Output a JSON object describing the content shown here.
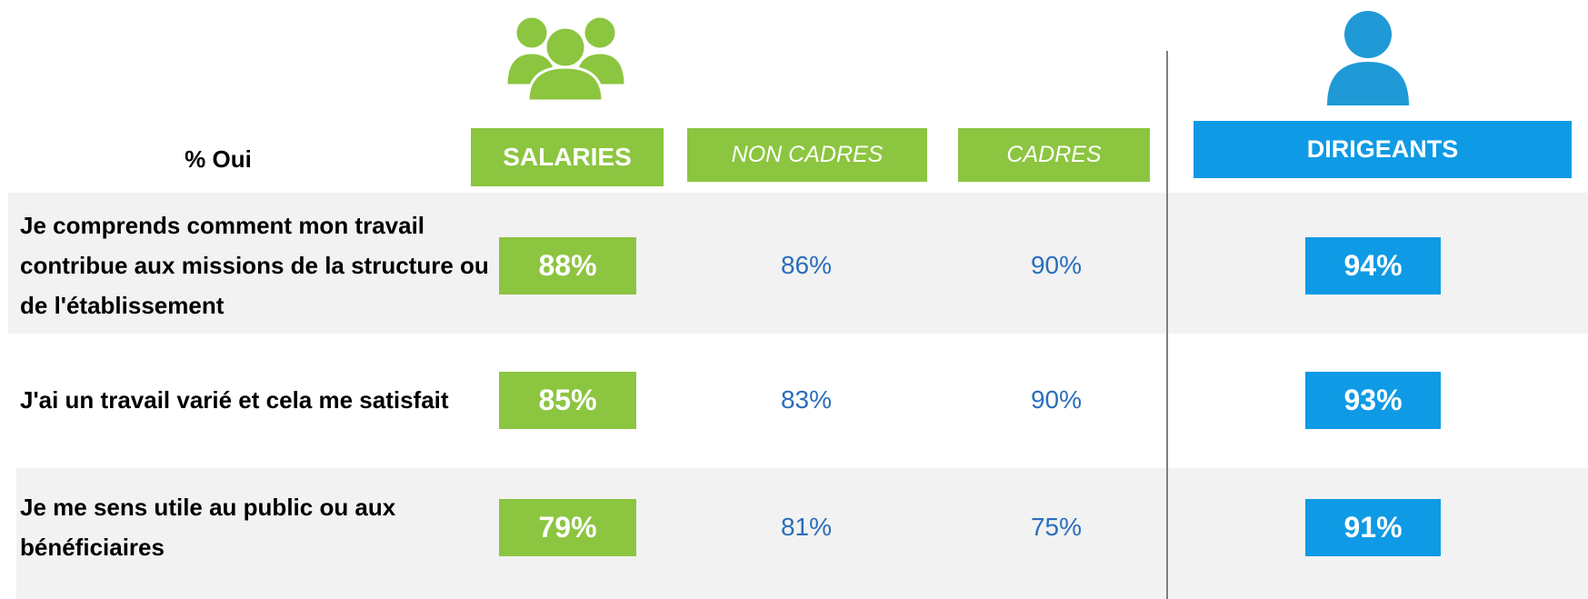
{
  "header": {
    "label": "% Oui"
  },
  "table": {
    "columns": [
      "SALARIES",
      "NON CADRES",
      "CADRES",
      "DIRIGEANTS"
    ],
    "rows": [
      {
        "label": "Je comprends comment mon travail contribue aux missions de la structure ou de l'établissement",
        "values": [
          "88%",
          "86%",
          "90%",
          "94%"
        ]
      },
      {
        "label": "J'ai un travail varié et cela me satisfait",
        "values": [
          "85%",
          "83%",
          "90%",
          "93%"
        ]
      },
      {
        "label": "Je me sens utile au public ou aux bénéficiaires",
        "values": [
          "79%",
          "81%",
          "75%",
          "91%"
        ]
      }
    ]
  }
}
